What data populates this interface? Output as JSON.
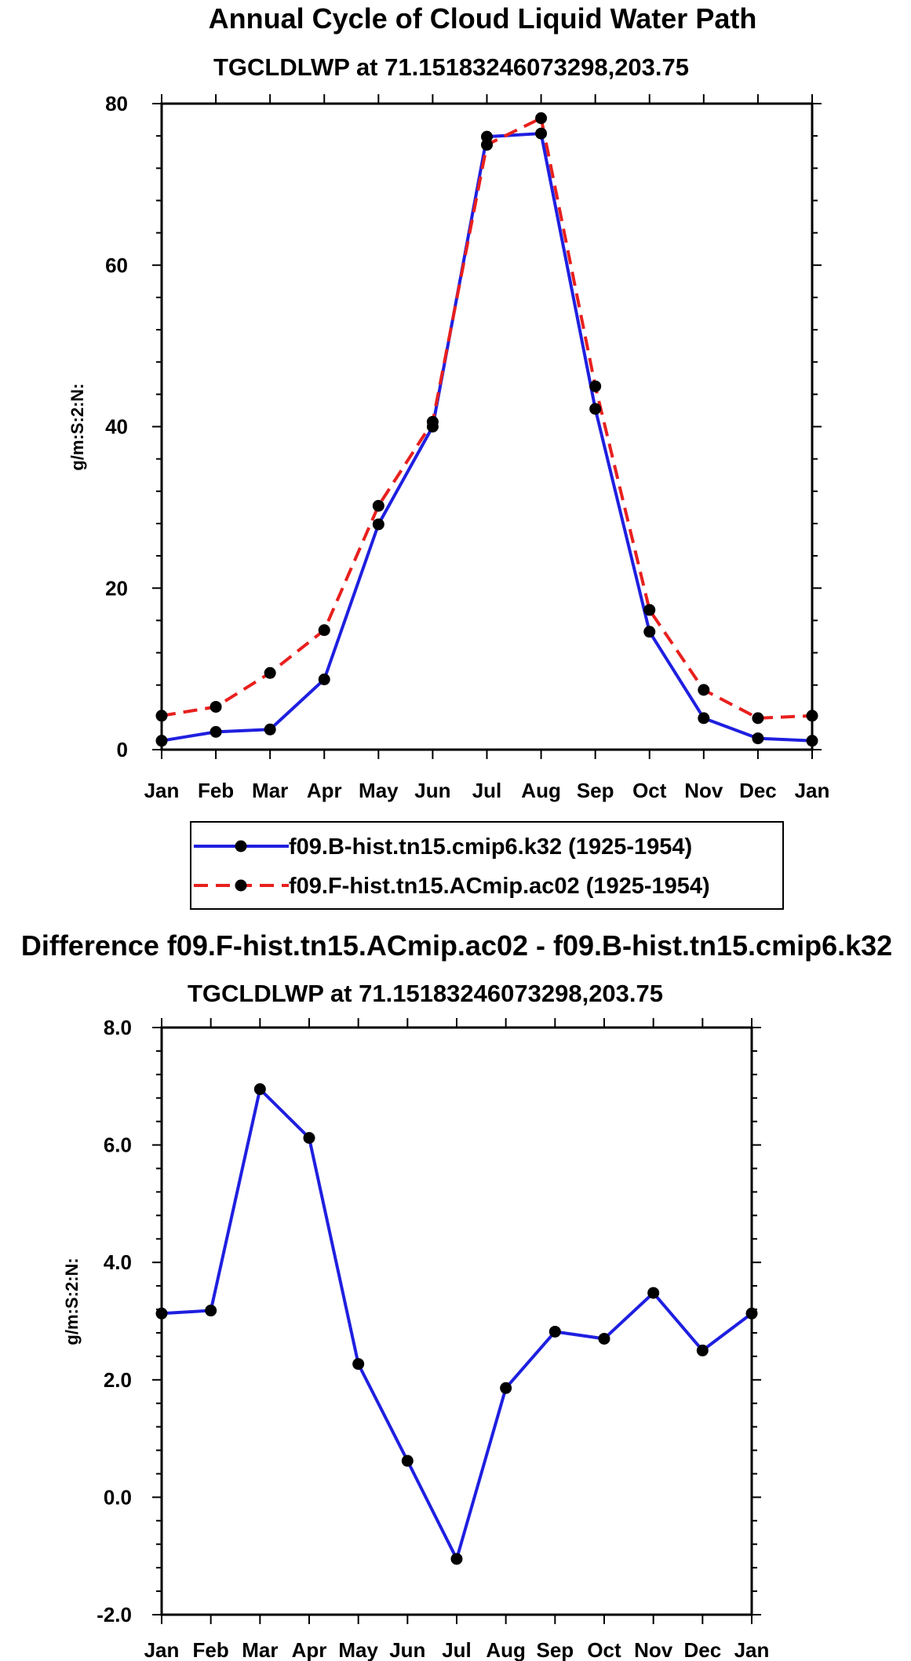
{
  "chart_data": [
    {
      "type": "line",
      "title": "Annual Cycle of Cloud Liquid Water Path",
      "subtitle": "TGCLDLWP at 71.15183246073298,203.75",
      "ylabel": "g/m:S:2:N:",
      "xlabel": "",
      "categories": [
        "Jan",
        "Feb",
        "Mar",
        "Apr",
        "May",
        "Jun",
        "Jul",
        "Aug",
        "Sep",
        "Oct",
        "Nov",
        "Dec",
        "Jan"
      ],
      "ylim": [
        0,
        80
      ],
      "yticks": [
        "0",
        "20",
        "40",
        "60",
        "80"
      ],
      "series": [
        {
          "name": "f09.B-hist.tn15.cmip6.k32 (1925-1954)",
          "color": "#1f1fe0",
          "dash": false,
          "values": [
            1.1,
            2.2,
            2.5,
            8.7,
            27.9,
            40.0,
            75.9,
            76.3,
            42.2,
            14.6,
            3.9,
            1.4,
            1.1
          ]
        },
        {
          "name": "f09.F-hist.tn15.ACmip.ac02 (1925-1954)",
          "color": "#e8201e",
          "dash": true,
          "values": [
            4.2,
            5.3,
            9.5,
            14.8,
            30.2,
            40.6,
            74.9,
            78.2,
            45.0,
            17.3,
            7.4,
            3.9,
            4.2
          ]
        }
      ]
    },
    {
      "type": "line",
      "title": "Difference f09.F-hist.tn15.ACmip.ac02 - f09.B-hist.tn15.cmip6.k32",
      "subtitle": "TGCLDLWP at 71.15183246073298,203.75",
      "ylabel": "g/m:S:2:N:",
      "xlabel": "",
      "categories": [
        "Jan",
        "Feb",
        "Mar",
        "Apr",
        "May",
        "Jun",
        "Jul",
        "Aug",
        "Sep",
        "Oct",
        "Nov",
        "Dec",
        "Jan"
      ],
      "ylim": [
        -2,
        8
      ],
      "yticks": [
        "-2.0",
        "0.0",
        "2.0",
        "4.0",
        "6.0",
        "8.0"
      ],
      "series": [
        {
          "name": "difference",
          "color": "#1f1fe0",
          "dash": false,
          "values": [
            3.13,
            3.18,
            6.95,
            6.12,
            2.27,
            0.62,
            -1.05,
            1.86,
            2.82,
            2.7,
            3.48,
            2.5,
            3.13
          ]
        }
      ]
    }
  ]
}
